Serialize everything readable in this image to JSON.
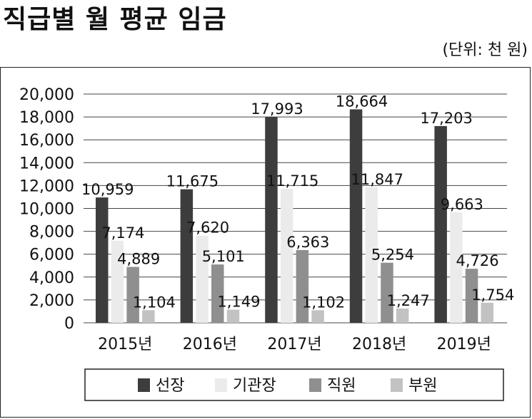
{
  "title": "직급별 월 평균 임금",
  "unit": "(단위: 천 원)",
  "chart_data": {
    "type": "bar",
    "categories": [
      "2015년",
      "2016년",
      "2017년",
      "2018년",
      "2019년"
    ],
    "series": [
      {
        "name": "선장",
        "color": "#3d3d3d",
        "values": [
          10959,
          11675,
          17993,
          18664,
          17203
        ],
        "labels": [
          "10,959",
          "11,675",
          "17,993",
          "18,664",
          "17,203"
        ]
      },
      {
        "name": "기관장",
        "color": "#ebebeb",
        "values": [
          7174,
          7620,
          11715,
          11847,
          9663
        ],
        "labels": [
          "7,174",
          "7,620",
          "11,715",
          "11,847",
          "9,663"
        ]
      },
      {
        "name": "직원",
        "color": "#8f8f8f",
        "values": [
          4889,
          5101,
          6363,
          5254,
          4726
        ],
        "labels": [
          "4,889",
          "5,101",
          "6,363",
          "5,254",
          "4,726"
        ]
      },
      {
        "name": "부원",
        "color": "#c2c2c2",
        "values": [
          1104,
          1149,
          1102,
          1247,
          1754
        ],
        "labels": [
          "1,104",
          "1,149",
          "1,102",
          "1,247",
          "1,754"
        ]
      }
    ],
    "yticks": [
      "0",
      "2,000",
      "4,000",
      "6,000",
      "8,000",
      "10,000",
      "12,000",
      "14,000",
      "16,000",
      "18,000",
      "20,000"
    ],
    "ylim": [
      0,
      20000
    ],
    "ystep": 2000,
    "grid": true,
    "legend": "bottom"
  }
}
